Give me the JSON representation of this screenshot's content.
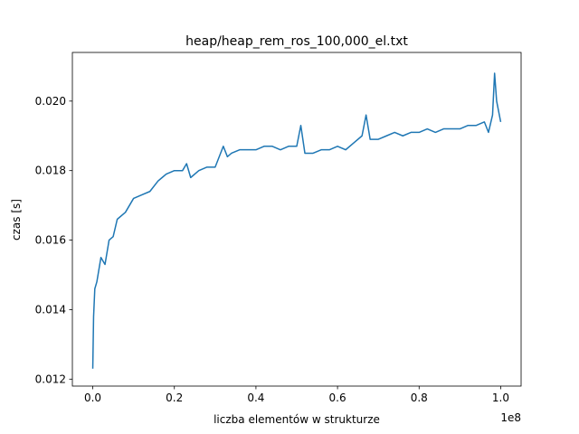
{
  "chart_data": {
    "type": "line",
    "title": "heap/heap_rem_ros_100,000_el.txt",
    "xlabel": "liczba elementów w strukturze",
    "ylabel": "czas [s]",
    "x_offset_text": "1e8",
    "xlim": [
      -0.05,
      1.05
    ],
    "ylim": [
      0.0118,
      0.0214
    ],
    "x_ticks": [
      0.0,
      0.2,
      0.4,
      0.6,
      0.8,
      1.0
    ],
    "x_tick_labels": [
      "0.0",
      "0.2",
      "0.4",
      "0.6",
      "0.8",
      "1.0"
    ],
    "y_ticks": [
      0.012,
      0.014,
      0.016,
      0.018,
      0.02
    ],
    "y_tick_labels": [
      "0.012",
      "0.014",
      "0.016",
      "0.018",
      "0.020"
    ],
    "grid": false,
    "series_color": "#1f77b4",
    "series": [
      {
        "x": [
          0.0,
          0.002,
          0.005,
          0.01,
          0.02,
          0.03,
          0.04,
          0.05,
          0.06,
          0.08,
          0.1,
          0.12,
          0.14,
          0.16,
          0.17,
          0.18,
          0.2,
          0.22,
          0.23,
          0.24,
          0.26,
          0.28,
          0.3,
          0.32,
          0.33,
          0.34,
          0.36,
          0.38,
          0.4,
          0.42,
          0.44,
          0.46,
          0.48,
          0.5,
          0.51,
          0.52,
          0.54,
          0.56,
          0.58,
          0.6,
          0.62,
          0.64,
          0.66,
          0.67,
          0.68,
          0.7,
          0.72,
          0.74,
          0.76,
          0.78,
          0.8,
          0.82,
          0.84,
          0.86,
          0.88,
          0.9,
          0.92,
          0.94,
          0.96,
          0.97,
          0.98,
          0.985,
          0.99,
          1.0
        ],
        "y": [
          0.0123,
          0.0138,
          0.0146,
          0.0148,
          0.0155,
          0.0153,
          0.016,
          0.0161,
          0.0166,
          0.0168,
          0.0172,
          0.0173,
          0.0174,
          0.0177,
          0.0178,
          0.0179,
          0.018,
          0.018,
          0.0182,
          0.0178,
          0.018,
          0.0181,
          0.0181,
          0.0187,
          0.0184,
          0.0185,
          0.0186,
          0.0186,
          0.0186,
          0.0187,
          0.0187,
          0.0186,
          0.0187,
          0.0187,
          0.0193,
          0.0185,
          0.0185,
          0.0186,
          0.0186,
          0.0187,
          0.0186,
          0.0188,
          0.019,
          0.0196,
          0.0189,
          0.0189,
          0.019,
          0.0191,
          0.019,
          0.0191,
          0.0191,
          0.0192,
          0.0191,
          0.0192,
          0.0192,
          0.0192,
          0.0193,
          0.0193,
          0.0194,
          0.0191,
          0.0196,
          0.0208,
          0.02,
          0.0194
        ]
      }
    ]
  }
}
